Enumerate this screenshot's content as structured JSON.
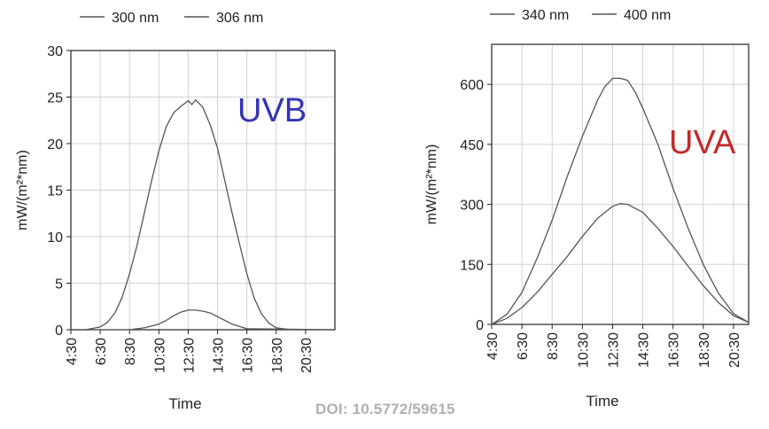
{
  "doi": "DOI: 10.5772/59615",
  "chart_data": [
    {
      "type": "line",
      "label": "UVB",
      "label_color": "#3434b4",
      "xlabel": "Time",
      "ylabel": "mW/(m²*nm)",
      "x_ticks": [
        "4:30",
        "6:30",
        "8:30",
        "10:30",
        "12:30",
        "14:30",
        "16:30",
        "18:30",
        "20:30"
      ],
      "xlim": [
        4.5,
        22.5
      ],
      "ylim": [
        0,
        30
      ],
      "y_ticks": [
        0,
        5,
        10,
        15,
        20,
        25,
        30
      ],
      "grid": true,
      "legend": "top",
      "series": [
        {
          "name": "300 nm",
          "x": [
            4.5,
            8.5,
            9.5,
            10.5,
            11.0,
            11.5,
            12.0,
            12.5,
            13.0,
            13.5,
            14.0,
            14.5,
            15.0,
            15.5,
            16.5,
            22.5
          ],
          "y": [
            0,
            0,
            0.2,
            0.6,
            1.0,
            1.5,
            1.9,
            2.1,
            2.1,
            2.0,
            1.8,
            1.4,
            1.0,
            0.6,
            0.1,
            0
          ]
        },
        {
          "name": "306 nm",
          "x": [
            4.5,
            5.5,
            6.5,
            7.0,
            7.5,
            8.0,
            8.5,
            9.0,
            9.5,
            10.0,
            10.5,
            11.0,
            11.5,
            12.0,
            12.5,
            12.75,
            13.0,
            13.25,
            13.5,
            14.0,
            14.5,
            15.0,
            15.5,
            16.0,
            16.5,
            17.0,
            17.5,
            18.0,
            18.5,
            19.5,
            20.5,
            22.5
          ],
          "y": [
            0,
            0,
            0.3,
            0.8,
            1.8,
            3.5,
            6.0,
            9.0,
            12.5,
            16.0,
            19.2,
            21.8,
            23.3,
            24.0,
            24.6,
            24.2,
            24.7,
            24.3,
            23.9,
            22.0,
            19.5,
            16.0,
            12.5,
            9.2,
            6.0,
            3.4,
            1.7,
            0.7,
            0.2,
            0,
            0,
            0
          ]
        }
      ]
    },
    {
      "type": "line",
      "label": "UVA",
      "label_color": "#c12a2a",
      "xlabel": "Time",
      "ylabel": "mW/(m²*nm)",
      "x_ticks": [
        "4:30",
        "6:30",
        "8:30",
        "10:30",
        "12:30",
        "14:30",
        "16:30",
        "18:30",
        "20:30"
      ],
      "xlim": [
        4.5,
        21.5
      ],
      "ylim": [
        0,
        700
      ],
      "y_ticks": [
        0,
        150,
        300,
        450,
        600
      ],
      "grid": true,
      "legend": "top",
      "series": [
        {
          "name": "340 nm",
          "x": [
            4.5,
            5.5,
            6.5,
            7.5,
            8.5,
            9.5,
            10.5,
            11.5,
            12.5,
            13.0,
            13.5,
            14.5,
            15.5,
            16.5,
            17.5,
            18.5,
            19.5,
            20.5,
            21.5
          ],
          "y": [
            0,
            15,
            42,
            80,
            125,
            170,
            220,
            265,
            295,
            302,
            300,
            280,
            240,
            195,
            145,
            97,
            55,
            22,
            5
          ]
        },
        {
          "name": "400 nm",
          "x": [
            4.5,
            5.5,
            6.5,
            7.5,
            8.5,
            9.5,
            10.5,
            11.5,
            12.0,
            12.5,
            13.0,
            13.5,
            14.0,
            14.5,
            15.5,
            16.5,
            17.5,
            18.5,
            19.5,
            20.5,
            21.5
          ],
          "y": [
            0,
            25,
            80,
            165,
            260,
            370,
            470,
            560,
            595,
            615,
            615,
            610,
            580,
            540,
            450,
            340,
            240,
            150,
            78,
            27,
            5
          ]
        }
      ]
    }
  ]
}
